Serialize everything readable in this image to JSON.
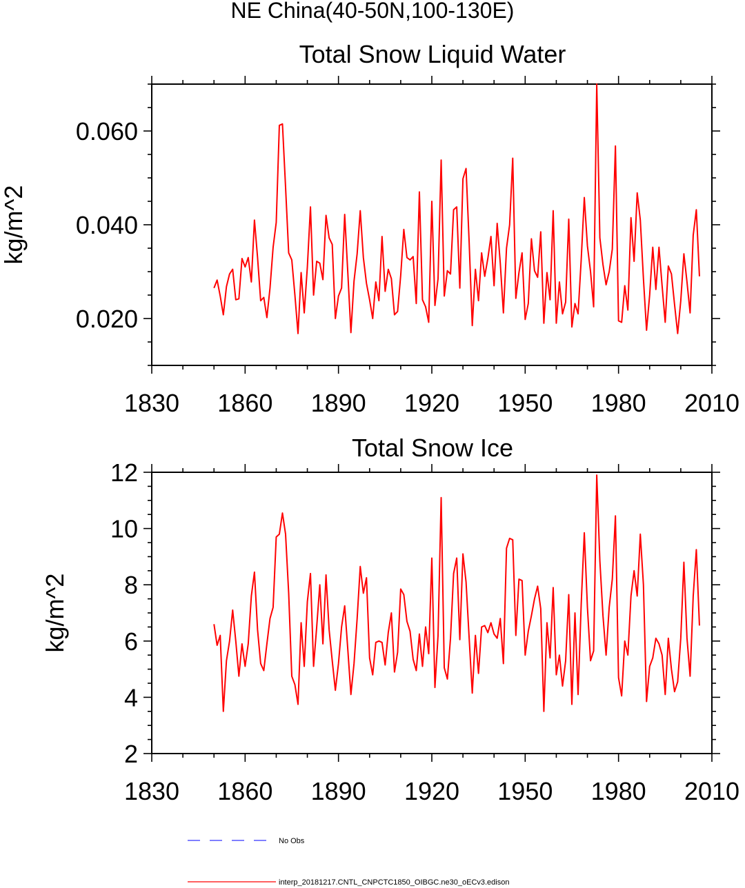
{
  "title": "NE China(40-50N,100-130E)",
  "chart_data": [
    {
      "type": "line",
      "title": "Total Snow Liquid Water",
      "ylabel": "kg/m^2",
      "xlabel": "",
      "xlim": [
        1830,
        2010
      ],
      "ylim": [
        0.01,
        0.07
      ],
      "xticks": [
        1830,
        1860,
        1890,
        1920,
        1950,
        1980,
        2010
      ],
      "yticks": [
        0.02,
        0.04,
        0.06
      ],
      "ytick_labels": [
        "0.020",
        "0.040",
        "0.060"
      ],
      "x_start": 1850,
      "series": [
        {
          "name": "interp_20181217.CNTL_CNPCTC1850_OIBGC.ne30_oECv3.edison",
          "color": "#ff0000",
          "values": [
            0.0265,
            0.0282,
            0.0248,
            0.0208,
            0.0268,
            0.0295,
            0.0305,
            0.024,
            0.0242,
            0.0328,
            0.031,
            0.033,
            0.0278,
            0.041,
            0.033,
            0.0238,
            0.0245,
            0.0202,
            0.0265,
            0.0352,
            0.0405,
            0.0612,
            0.0615,
            0.048,
            0.034,
            0.0325,
            0.025,
            0.0168,
            0.0298,
            0.0212,
            0.031,
            0.0438,
            0.025,
            0.0322,
            0.0318,
            0.0283,
            0.042,
            0.0372,
            0.0358,
            0.02,
            0.0248,
            0.0265,
            0.0422,
            0.0298,
            0.017,
            0.028,
            0.0338,
            0.043,
            0.033,
            0.0275,
            0.024,
            0.02,
            0.0278,
            0.0238,
            0.0375,
            0.0258,
            0.0305,
            0.0285,
            0.0208,
            0.0215,
            0.0292,
            0.039,
            0.033,
            0.0325,
            0.0332,
            0.0232,
            0.047,
            0.024,
            0.0225,
            0.0192,
            0.045,
            0.0228,
            0.0285,
            0.0538,
            0.0248,
            0.0302,
            0.0295,
            0.0432,
            0.0438,
            0.0265,
            0.0498,
            0.052,
            0.0362,
            0.0185,
            0.0305,
            0.0238,
            0.034,
            0.029,
            0.0328,
            0.0375,
            0.027,
            0.0403,
            0.0318,
            0.0212,
            0.035,
            0.04,
            0.0542,
            0.0243,
            0.0298,
            0.034,
            0.0198,
            0.0232,
            0.037,
            0.0302,
            0.0288,
            0.0385,
            0.019,
            0.0298,
            0.024,
            0.043,
            0.019,
            0.0278,
            0.021,
            0.0235,
            0.0412,
            0.0182,
            0.0232,
            0.021,
            0.0325,
            0.0458,
            0.0355,
            0.03,
            0.0225,
            0.07,
            0.0372,
            0.0315,
            0.0272,
            0.03,
            0.0348,
            0.0568,
            0.0195,
            0.0192,
            0.027,
            0.0218,
            0.0415,
            0.0322,
            0.0468,
            0.041,
            0.0285,
            0.0175,
            0.025,
            0.0352,
            0.0262,
            0.0352,
            0.027,
            0.0192,
            0.0312,
            0.0295,
            0.023,
            0.0168,
            0.0238,
            0.0338,
            0.0278,
            0.0212,
            0.0378,
            0.0432,
            0.029
          ]
        }
      ]
    },
    {
      "type": "line",
      "title": "Total Snow Ice",
      "ylabel": "kg/m^2",
      "xlabel": "",
      "xlim": [
        1830,
        2010
      ],
      "ylim": [
        2,
        12
      ],
      "xticks": [
        1830,
        1860,
        1890,
        1920,
        1950,
        1980,
        2010
      ],
      "yticks": [
        2,
        4,
        6,
        8,
        10,
        12
      ],
      "ytick_labels": [
        "2",
        "4",
        "6",
        "8",
        "10",
        "12"
      ],
      "x_start": 1850,
      "series": [
        {
          "name": "interp_20181217.CNTL_CNPCTC1850_OIBGC.ne30_oECv3.edison",
          "color": "#ff0000",
          "values": [
            6.6,
            5.85,
            6.2,
            3.5,
            5.3,
            6.0,
            7.1,
            6.0,
            4.75,
            5.9,
            5.1,
            5.9,
            7.6,
            8.45,
            6.4,
            5.2,
            4.95,
            5.9,
            6.8,
            7.2,
            9.7,
            9.8,
            10.55,
            9.8,
            7.7,
            4.75,
            4.45,
            3.75,
            6.65,
            5.1,
            7.4,
            8.4,
            5.1,
            6.5,
            8.0,
            5.9,
            8.35,
            6.4,
            5.3,
            4.25,
            5.2,
            6.5,
            7.25,
            5.7,
            4.1,
            5.2,
            6.8,
            8.65,
            7.7,
            8.25,
            5.4,
            4.8,
            5.95,
            6.0,
            5.95,
            5.15,
            6.3,
            7.0,
            4.9,
            5.6,
            7.85,
            7.65,
            6.7,
            6.35,
            5.35,
            4.95,
            6.25,
            5.1,
            6.5,
            5.55,
            8.95,
            4.35,
            6.2,
            11.1,
            5.05,
            4.65,
            6.1,
            8.4,
            8.95,
            6.05,
            9.1,
            8.1,
            6.1,
            4.15,
            6.2,
            4.85,
            6.5,
            6.55,
            6.3,
            6.65,
            6.25,
            6.1,
            6.8,
            5.2,
            9.3,
            9.65,
            9.6,
            6.2,
            8.2,
            8.15,
            5.5,
            6.35,
            6.9,
            7.5,
            7.95,
            7.15,
            3.5,
            6.65,
            5.4,
            7.9,
            4.8,
            5.5,
            4.4,
            5.3,
            7.65,
            3.75,
            7.0,
            4.1,
            7.3,
            9.85,
            7.2,
            5.3,
            5.65,
            11.9,
            8.85,
            6.9,
            5.5,
            7.2,
            8.2,
            10.45,
            4.7,
            4.05,
            6.0,
            5.5,
            7.6,
            8.5,
            7.6,
            9.8,
            8.0,
            3.85,
            5.1,
            5.4,
            6.1,
            5.9,
            5.5,
            4.1,
            6.1,
            5.0,
            4.2,
            4.55,
            6.1,
            8.8,
            6.1,
            4.75,
            7.6,
            9.25,
            6.55
          ]
        }
      ]
    }
  ],
  "legend": {
    "items": [
      {
        "label": "No Obs",
        "color": "#3333ff",
        "style": "dashed"
      },
      {
        "label": "interp_20181217.CNTL_CNPCTC1850_OIBGC.ne30_oECv3.edison",
        "color": "#ff0000",
        "style": "solid"
      }
    ]
  }
}
